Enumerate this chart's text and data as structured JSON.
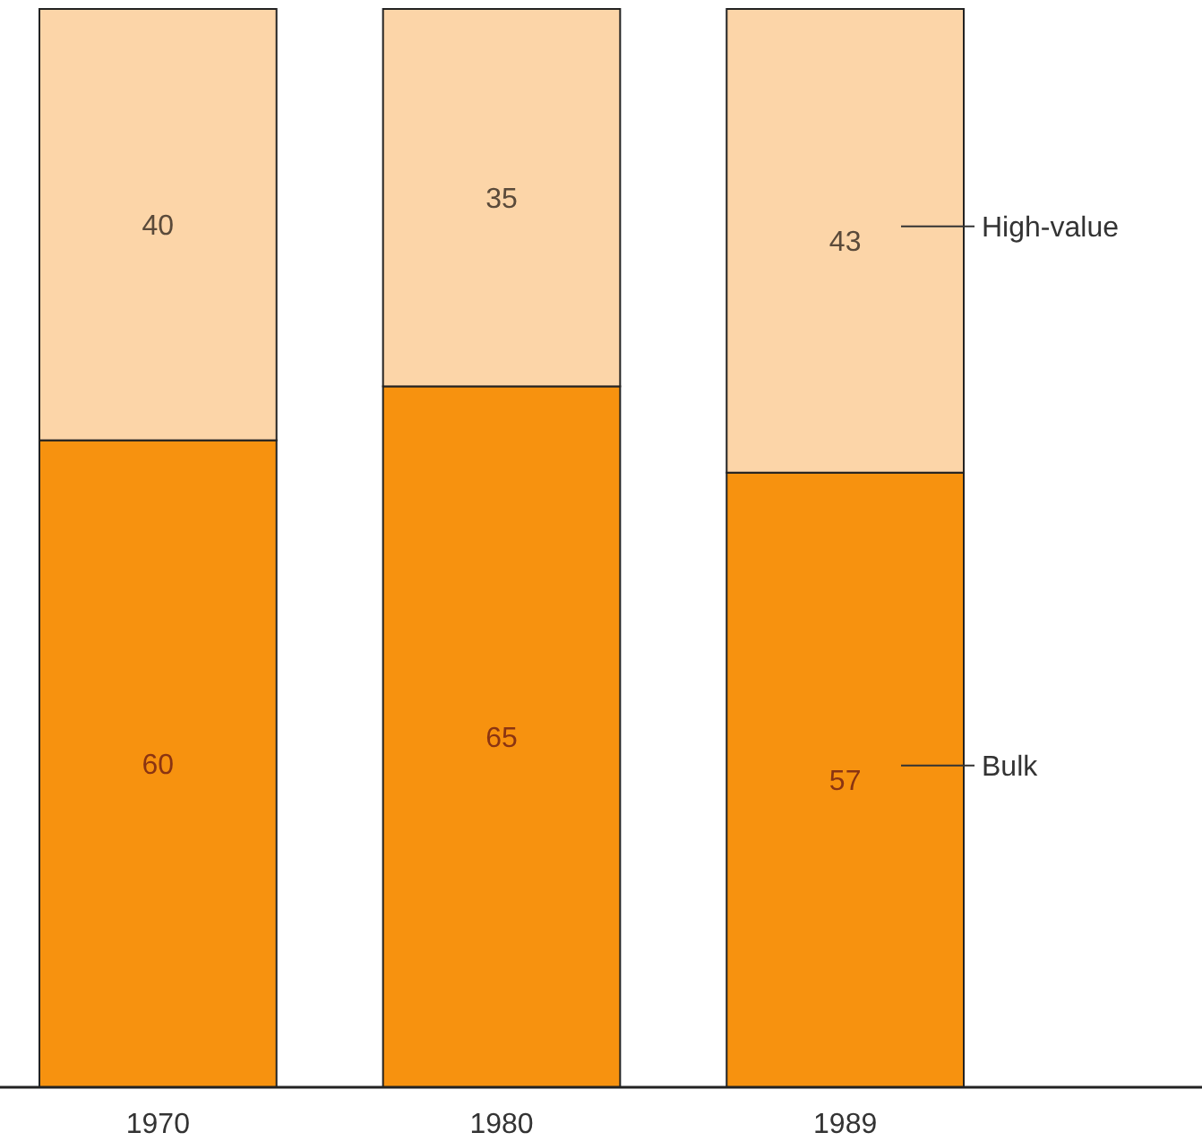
{
  "chart_data": {
    "type": "bar",
    "stacked": true,
    "categories": [
      "1970",
      "1980",
      "1989"
    ],
    "series": [
      {
        "name": "Bulk",
        "color": "#f7920f",
        "values": [
          60,
          65,
          57
        ]
      },
      {
        "name": "High-value",
        "color": "#fcd5a8",
        "values": [
          40,
          35,
          43
        ]
      }
    ],
    "ylim": [
      0,
      100
    ],
    "tick_labels": "x",
    "data_labels": true
  }
}
